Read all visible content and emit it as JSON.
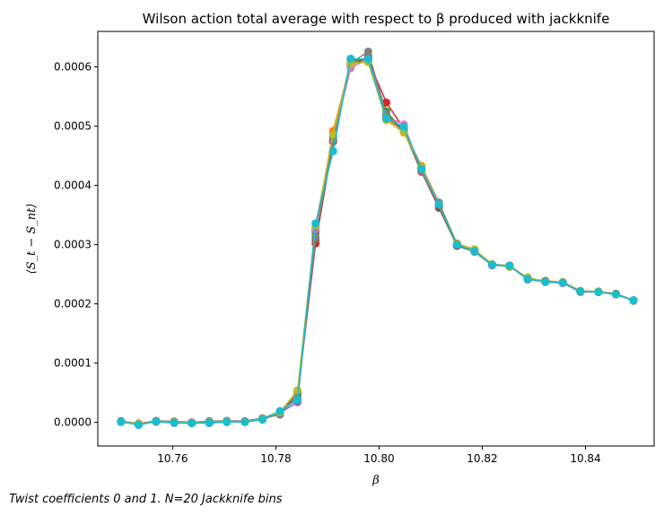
{
  "chart_data": {
    "type": "line",
    "title": "Wilson action total average with respect to β produced with jackknife",
    "xlabel": "β",
    "ylabel": "⟨S_t − S_nt⟩",
    "xlim": [
      10.7455,
      10.8533
    ],
    "ylim": [
      -4e-05,
      0.00066
    ],
    "xticks": [
      "10.76",
      "10.78",
      "10.80",
      "10.82",
      "10.84"
    ],
    "xtick_values": [
      10.76,
      10.78,
      10.8,
      10.82,
      10.84
    ],
    "yticks": [
      "0.0000",
      "0.0001",
      "0.0002",
      "0.0003",
      "0.0004",
      "0.0005",
      "0.0006"
    ],
    "ytick_values": [
      0,
      0.0001,
      0.0002,
      0.0003,
      0.0004,
      0.0005,
      0.0006
    ],
    "grid": false,
    "marker": "circle",
    "x": [
      10.75,
      10.7534,
      10.7568,
      10.7603,
      10.7637,
      10.7671,
      10.7705,
      10.774,
      10.7774,
      10.7808,
      10.7842,
      10.7877,
      10.7911,
      10.7945,
      10.7979,
      10.8014,
      10.8048,
      10.8082,
      10.8116,
      10.8151,
      10.8185,
      10.8219,
      10.8253,
      10.8288,
      10.8322,
      10.8356,
      10.839,
      10.8425,
      10.8459,
      10.8493
    ],
    "series": [
      {
        "color": "#1f77b4",
        "values": [
          5e-07,
          -3.5e-06,
          1e-06,
          -1e-06,
          -1.5e-06,
          -1e-06,
          5e-07,
          5e-07,
          4.5e-06,
          1.6e-05,
          4.2e-05,
          0.000328,
          0.000478,
          0.000612,
          0.000614,
          0.000515,
          0.000496,
          0.000428,
          0.000367,
          0.000298,
          0.000288,
          0.000266,
          0.000264,
          0.000242,
          0.000237,
          0.000236,
          0.000221,
          0.00022,
          0.000216,
          0.000206
        ]
      },
      {
        "color": "#ff7f0e",
        "values": [
          1e-06,
          -2.5e-06,
          1.5e-06,
          5e-07,
          -1e-06,
          1e-06,
          1.5e-06,
          1e-06,
          6e-06,
          1.8e-05,
          5.2e-05,
          0.000318,
          0.000492,
          0.000606,
          0.000612,
          0.000512,
          0.000494,
          0.000433,
          0.000371,
          0.000302,
          0.000292,
          0.000266,
          0.000265,
          0.000243,
          0.000239,
          0.000237,
          0.000222,
          0.000221,
          0.000217,
          0.000206
        ]
      },
      {
        "color": "#2ca02c",
        "values": [
          1.5e-06,
          -2e-06,
          2e-06,
          1e-06,
          -5e-07,
          1.5e-06,
          2e-06,
          1.5e-06,
          6.5e-06,
          1.85e-05,
          4.6e-05,
          0.000322,
          0.000482,
          0.000608,
          0.000616,
          0.000525,
          0.000492,
          0.000431,
          0.000369,
          0.000301,
          0.00029,
          0.000267,
          0.000264,
          0.000242,
          0.000238,
          0.000236,
          0.000221,
          0.00022,
          0.000217,
          0.000206
        ]
      },
      {
        "color": "#d62728",
        "values": [
          1e-06,
          -3e-06,
          1.5e-06,
          5e-07,
          -1e-06,
          1e-06,
          1.5e-06,
          1e-06,
          6e-06,
          1.7e-05,
          4.4e-05,
          0.000302,
          0.000474,
          0.000604,
          0.000612,
          0.00054,
          0.000496,
          0.000429,
          0.000368,
          0.0003,
          0.000289,
          0.000266,
          0.000264,
          0.000242,
          0.000237,
          0.000236,
          0.000221,
          0.00022,
          0.000216,
          0.000206
        ]
      },
      {
        "color": "#9467bd",
        "values": [
          1e-06,
          -3.5e-06,
          1e-06,
          0,
          -1.5e-06,
          5e-07,
          1e-06,
          5e-07,
          5e-06,
          1.6e-05,
          3.4e-05,
          0.000324,
          0.000476,
          0.000604,
          0.000614,
          0.000516,
          0.000497,
          0.000427,
          0.000366,
          0.000299,
          0.000288,
          0.000265,
          0.000264,
          0.000241,
          0.000237,
          0.000235,
          0.00022,
          0.00022,
          0.000216,
          0.000205
        ]
      },
      {
        "color": "#8c564b",
        "values": [
          2e-06,
          -2.5e-06,
          2.5e-06,
          1.5e-06,
          0,
          2e-06,
          2.5e-06,
          2e-06,
          7e-06,
          1.5e-05,
          4.8e-05,
          0.000308,
          0.000474,
          0.000602,
          0.000618,
          0.000518,
          0.000491,
          0.000423,
          0.000362,
          0.000298,
          0.000289,
          0.000266,
          0.000264,
          0.000242,
          0.000238,
          0.000236,
          0.000221,
          0.000221,
          0.000216,
          0.000206
        ]
      },
      {
        "color": "#e377c2",
        "values": [
          1e-06,
          -3e-06,
          1.5e-06,
          5e-07,
          -1e-06,
          1e-06,
          1.5e-06,
          1e-06,
          6e-06,
          1.8e-05,
          4.2e-05,
          0.000326,
          0.000478,
          0.000598,
          0.000614,
          0.000516,
          0.000503,
          0.000425,
          0.000368,
          0.0003,
          0.000289,
          0.000266,
          0.000264,
          0.000242,
          0.000237,
          0.000236,
          0.000221,
          0.00022,
          0.000216,
          0.000206
        ]
      },
      {
        "color": "#7f7f7f",
        "values": [
          1.5e-06,
          -2.5e-06,
          2e-06,
          1e-06,
          -5e-07,
          1.5e-06,
          2e-06,
          1.5e-06,
          6.5e-06,
          1.3e-05,
          4.6e-05,
          0.000312,
          0.000478,
          0.000606,
          0.000626,
          0.00052,
          0.000494,
          0.000426,
          0.000371,
          0.0003,
          0.000289,
          0.000266,
          0.000264,
          0.000242,
          0.000237,
          0.000236,
          0.000221,
          0.00022,
          0.000216,
          0.000206
        ]
      },
      {
        "color": "#bcbd22",
        "values": [
          1e-06,
          -3e-06,
          1.5e-06,
          5e-07,
          -1e-06,
          1e-06,
          1.5e-06,
          1e-06,
          6e-06,
          1.7e-05,
          5.4e-05,
          0.000332,
          0.000486,
          0.000606,
          0.000608,
          0.00051,
          0.000489,
          0.000431,
          0.000368,
          0.000301,
          0.000292,
          0.000267,
          0.000262,
          0.000245,
          0.000237,
          0.000237,
          0.000221,
          0.000221,
          0.000216,
          0.000206
        ]
      },
      {
        "color": "#17becf",
        "values": [
          1e-06,
          -4.5e-06,
          1.5e-06,
          -5e-07,
          -1.5e-06,
          0,
          1e-06,
          5e-07,
          5e-06,
          1.9e-05,
          3.8e-05,
          0.000336,
          0.000458,
          0.000614,
          0.000613,
          0.000513,
          0.000499,
          0.000428,
          0.000368,
          0.0003,
          0.000289,
          0.000266,
          0.000264,
          0.000242,
          0.000237,
          0.000236,
          0.000221,
          0.00022,
          0.000216,
          0.000206
        ]
      }
    ]
  },
  "caption": "Twist coefficients 0 and 1. N=20 Jackknife bins"
}
